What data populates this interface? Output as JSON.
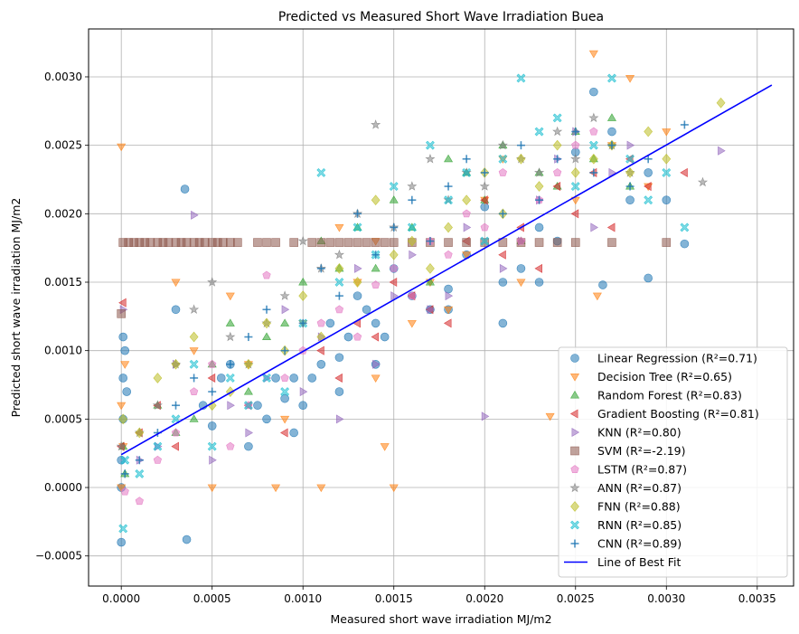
{
  "chart_data": {
    "type": "scatter",
    "title": "Predicted vs Measured Short Wave Irradiation Buea",
    "xlabel": "Measured short wave irradiation MJ/m2",
    "ylabel": "Predicted short wave irradiation MJ/m2",
    "xlim": [
      -0.00018,
      0.0037
    ],
    "ylim": [
      -0.00072,
      0.00335
    ],
    "x_ticks": [
      0.0,
      0.0005,
      0.001,
      0.0015,
      0.002,
      0.0025,
      0.003,
      0.0035
    ],
    "x_tick_labels": [
      "0.0000",
      "0.0005",
      "0.0010",
      "0.0015",
      "0.0020",
      "0.0025",
      "0.0030",
      "0.0035"
    ],
    "y_ticks": [
      -0.0005,
      0.0,
      0.0005,
      0.001,
      0.0015,
      0.002,
      0.0025,
      0.003
    ],
    "y_tick_labels": [
      "−0.0005",
      "0.0000",
      "0.0005",
      "0.0010",
      "0.0015",
      "0.0020",
      "0.0025",
      "0.0030"
    ],
    "grid": true,
    "legend_position": "lower-right",
    "series": [
      {
        "name": "Linear Regression (R²=0.71)",
        "color": "#1f77b4",
        "marker": "circle",
        "x": [
          0.0,
          1e-05,
          2e-05,
          1e-05,
          0.0,
          3e-05,
          1e-05,
          0.0,
          0.00035,
          0.00036,
          0.0003,
          0.00045,
          0.0005,
          0.00055,
          0.0006,
          0.0007,
          0.00075,
          0.0008,
          0.00085,
          0.0009,
          0.00095,
          0.001,
          0.00105,
          0.0011,
          0.00115,
          0.0012,
          0.00125,
          0.0013,
          0.00135,
          0.0014,
          0.00145,
          0.0015,
          0.0016,
          0.0017,
          0.0018,
          0.0019,
          0.002,
          0.0021,
          0.0022,
          0.0023,
          0.0024,
          0.0025,
          0.0026,
          0.0027,
          0.00265,
          0.0028,
          0.0029,
          0.003,
          0.0031,
          0.0029,
          0.00095,
          0.0012,
          0.0014,
          0.0018,
          0.0021,
          0.0023
        ],
        "y": [
          -0.0004,
          0.0011,
          0.001,
          0.0008,
          0.0002,
          0.0007,
          0.0005,
          0.0,
          0.00218,
          -0.00038,
          0.0013,
          0.0006,
          0.00045,
          0.0008,
          0.0009,
          0.0003,
          0.0006,
          0.0005,
          0.0008,
          0.00065,
          0.0004,
          0.0006,
          0.0008,
          0.0009,
          0.0012,
          0.00095,
          0.0011,
          0.0014,
          0.0013,
          0.0012,
          0.0011,
          0.0016,
          0.0014,
          0.0013,
          0.00145,
          0.0017,
          0.00205,
          0.0015,
          0.0016,
          0.0019,
          0.0018,
          0.00245,
          0.00289,
          0.0026,
          0.00148,
          0.0021,
          0.0023,
          0.0021,
          0.00178,
          0.00153,
          0.0008,
          0.0007,
          0.0009,
          0.0013,
          0.0012,
          0.0015
        ]
      },
      {
        "name": "Decision Tree (R²=0.65)",
        "color": "#ff7f0e",
        "marker": "triangle-down",
        "x": [
          0.0,
          0.0,
          1e-05,
          0.0,
          2e-05,
          0.0003,
          0.0004,
          0.0005,
          0.0006,
          0.0007,
          0.00085,
          0.0009,
          0.001,
          0.0011,
          0.0012,
          0.0013,
          0.0014,
          0.00145,
          0.0015,
          0.0016,
          0.0017,
          0.0018,
          0.0019,
          0.002,
          0.0021,
          0.0022,
          0.00236,
          0.0025,
          0.0026,
          0.0027,
          0.0028,
          0.0029,
          0.003,
          0.00262,
          0.0014
        ],
        "y": [
          0.00249,
          0.0,
          0.0003,
          0.0006,
          0.0009,
          0.0015,
          0.001,
          0.0,
          0.0014,
          0.0009,
          0.0,
          0.0005,
          0.0012,
          0.0,
          0.0019,
          0.0015,
          0.0018,
          0.0003,
          0.0,
          0.0012,
          0.0015,
          0.0013,
          0.0017,
          0.0021,
          0.0024,
          0.0015,
          0.00052,
          0.0021,
          0.00317,
          0.0025,
          0.00299,
          0.0022,
          0.0026,
          0.0014,
          0.0008
        ]
      },
      {
        "name": "Random Forest (R²=0.83)",
        "color": "#2ca02c",
        "marker": "triangle-up",
        "x": [
          1e-05,
          2e-05,
          0.0002,
          0.0003,
          0.0004,
          0.0005,
          0.0006,
          0.0007,
          0.0008,
          0.0009,
          0.001,
          0.0011,
          0.0012,
          0.0013,
          0.0014,
          0.0015,
          0.0016,
          0.0017,
          0.0018,
          0.0019,
          0.002,
          0.0021,
          0.0022,
          0.0023,
          0.0024,
          0.0025,
          0.0026,
          0.0027,
          0.0028
        ],
        "y": [
          0.0003,
          0.0001,
          0.0006,
          0.0004,
          0.0005,
          0.0009,
          0.0012,
          0.0007,
          0.0011,
          0.0012,
          0.0015,
          0.0018,
          0.0016,
          0.0019,
          0.0016,
          0.0021,
          0.0019,
          0.0015,
          0.0024,
          0.0023,
          0.0021,
          0.0025,
          0.0018,
          0.0023,
          0.0022,
          0.0026,
          0.0024,
          0.0027,
          0.0022
        ]
      },
      {
        "name": "Gradient Boosting (R²=0.81)",
        "color": "#d62728",
        "marker": "triangle-left",
        "x": [
          0.0,
          1e-05,
          0.0001,
          0.0002,
          0.0003,
          0.0005,
          0.0007,
          0.0009,
          0.0011,
          0.0012,
          0.0013,
          0.0014,
          0.0015,
          0.0016,
          0.0017,
          0.0018,
          0.0019,
          0.002,
          0.0021,
          0.0022,
          0.0023,
          0.0024,
          0.0025,
          0.0026,
          0.0027,
          0.0028,
          0.0029,
          0.0031
        ],
        "y": [
          0.0003,
          0.00135,
          0.0004,
          0.0006,
          0.0003,
          0.0008,
          0.0006,
          0.0004,
          0.001,
          0.0008,
          0.0012,
          0.0011,
          0.0015,
          0.0014,
          0.0013,
          0.0012,
          0.0018,
          0.0021,
          0.0017,
          0.0019,
          0.0016,
          0.0022,
          0.002,
          0.0023,
          0.0019,
          0.0024,
          0.0022,
          0.0023
        ]
      },
      {
        "name": "KNN (R²=0.80)",
        "color": "#9467bd",
        "marker": "triangle-right",
        "x": [
          1e-05,
          0.0001,
          0.0002,
          0.0003,
          0.0004,
          0.0005,
          0.0006,
          0.0007,
          0.0008,
          0.0009,
          0.001,
          0.0011,
          0.0012,
          0.0013,
          0.0014,
          0.0015,
          0.0016,
          0.0017,
          0.0018,
          0.0019,
          0.002,
          0.0021,
          0.0022,
          0.0023,
          0.0024,
          0.0025,
          0.0026,
          0.0027,
          0.0028,
          0.0033
        ],
        "y": [
          0.0013,
          0.0002,
          0.0003,
          0.0009,
          0.00199,
          0.0002,
          0.0006,
          0.0004,
          0.0008,
          0.0013,
          0.0007,
          0.0011,
          0.0005,
          0.0016,
          0.0009,
          0.0014,
          0.0017,
          0.0013,
          0.0014,
          0.0019,
          0.00052,
          0.0016,
          0.0018,
          0.0021,
          0.0024,
          0.0026,
          0.0019,
          0.0023,
          0.0025,
          0.00246
        ]
      },
      {
        "name": "SVM (R²=-2.19)",
        "color": "#8c564b",
        "marker": "square",
        "x": [
          1e-05,
          4e-05,
          7e-05,
          0.0001,
          0.00013,
          0.00016,
          0.0002,
          0.00023,
          0.00026,
          0.0003,
          0.00033,
          0.00036,
          0.0004,
          0.00043,
          0.00046,
          0.0005,
          0.00053,
          0.00056,
          0.0006,
          0.00064,
          0.00075,
          0.0008,
          0.00085,
          0.00095,
          0.00105,
          0.0011,
          0.00115,
          0.0012,
          0.00125,
          0.0013,
          0.00135,
          0.0014,
          0.00145,
          0.0015,
          0.0016,
          0.0017,
          0.0018,
          0.0019,
          0.002,
          0.0021,
          0.0022,
          0.0023,
          0.0024,
          0.0025,
          0.0027,
          0.003,
          0.0
        ],
        "y": [
          0.00179,
          0.00179,
          0.00179,
          0.00179,
          0.00179,
          0.00179,
          0.00179,
          0.00179,
          0.00179,
          0.00179,
          0.00179,
          0.00179,
          0.00179,
          0.00179,
          0.00179,
          0.00179,
          0.00179,
          0.00179,
          0.00179,
          0.00179,
          0.00179,
          0.00179,
          0.00179,
          0.00179,
          0.00179,
          0.00179,
          0.00179,
          0.00179,
          0.00179,
          0.00179,
          0.00179,
          0.00179,
          0.00179,
          0.00179,
          0.00179,
          0.00179,
          0.00179,
          0.00179,
          0.00179,
          0.00179,
          0.00179,
          0.00179,
          0.00179,
          0.00179,
          0.00179,
          0.00179,
          0.00127
        ]
      },
      {
        "name": "LSTM (R²=0.87)",
        "color": "#e377c2",
        "marker": "pentagon",
        "x": [
          2e-05,
          0.0001,
          0.0002,
          0.0003,
          0.0004,
          0.0005,
          0.0006,
          0.0007,
          0.0008,
          0.0009,
          0.001,
          0.0011,
          0.0012,
          0.0013,
          0.0014,
          0.0015,
          0.0016,
          0.0017,
          0.0018,
          0.0019,
          0.002,
          0.0021,
          0.0022,
          0.0023,
          0.0024,
          0.0025,
          0.0026
        ],
        "y": [
          -3e-05,
          -0.0001,
          0.0002,
          0.0004,
          0.0007,
          0.0009,
          0.0003,
          0.0006,
          0.00155,
          0.0008,
          0.001,
          0.0012,
          0.0013,
          0.0011,
          0.00148,
          0.0016,
          0.0014,
          0.0018,
          0.0017,
          0.002,
          0.0019,
          0.0023,
          0.0018,
          0.0021,
          0.0023,
          0.0025,
          0.0026
        ]
      },
      {
        "name": "ANN (R²=0.87)",
        "color": "#7f7f7f",
        "marker": "star",
        "x": [
          0.0,
          0.0001,
          0.0002,
          0.0003,
          0.0004,
          0.0005,
          0.0006,
          0.0007,
          0.0008,
          0.0009,
          0.001,
          0.0011,
          0.0012,
          0.0013,
          0.0014,
          0.0015,
          0.0016,
          0.0017,
          0.0018,
          0.0019,
          0.002,
          0.0021,
          0.0022,
          0.0023,
          0.0024,
          0.0025,
          0.0026,
          0.0027,
          0.0028,
          0.0032
        ],
        "y": [
          0.0003,
          0.0004,
          0.0006,
          0.0009,
          0.0013,
          0.0015,
          0.0011,
          0.0009,
          0.0012,
          0.0014,
          0.0018,
          0.0016,
          0.0017,
          0.002,
          0.00265,
          0.0019,
          0.0022,
          0.0024,
          0.0021,
          0.0023,
          0.0022,
          0.0025,
          0.0024,
          0.0023,
          0.0026,
          0.0024,
          0.0027,
          0.0025,
          0.0023,
          0.00223
        ]
      },
      {
        "name": "FNN (R²=0.88)",
        "color": "#bcbd22",
        "marker": "diamond",
        "x": [
          1e-05,
          0.0001,
          0.0002,
          0.0003,
          0.0004,
          0.0005,
          0.0006,
          0.0007,
          0.0008,
          0.0009,
          0.001,
          0.0011,
          0.0012,
          0.0013,
          0.0014,
          0.0015,
          0.0016,
          0.0017,
          0.0018,
          0.0019,
          0.002,
          0.0021,
          0.0022,
          0.0023,
          0.0024,
          0.0025,
          0.0026,
          0.0027,
          0.0028,
          0.0029,
          0.003,
          0.0033
        ],
        "y": [
          0.0005,
          0.0004,
          0.0008,
          0.0009,
          0.0011,
          0.0006,
          0.0007,
          0.0009,
          0.0012,
          0.001,
          0.0014,
          0.0011,
          0.0016,
          0.0015,
          0.0021,
          0.0017,
          0.0018,
          0.0016,
          0.0019,
          0.0021,
          0.0023,
          0.002,
          0.0024,
          0.0022,
          0.0025,
          0.0023,
          0.0024,
          0.0025,
          0.0023,
          0.0026,
          0.0024,
          0.00281
        ]
      },
      {
        "name": "RNN (R²=0.85)",
        "color": "#17becf",
        "marker": "x-cross",
        "x": [
          1e-05,
          2e-05,
          0.0001,
          0.0002,
          0.0003,
          0.0004,
          0.0005,
          0.0006,
          0.0007,
          0.0008,
          0.0009,
          0.001,
          0.0011,
          0.0012,
          0.0013,
          0.0014,
          0.0015,
          0.0016,
          0.0017,
          0.0018,
          0.0019,
          0.002,
          0.0021,
          0.0022,
          0.0023,
          0.0024,
          0.0025,
          0.0026,
          0.0027,
          0.0028,
          0.0029,
          0.003,
          0.0031
        ],
        "y": [
          -0.0003,
          0.0002,
          0.0001,
          0.0003,
          0.0005,
          0.0009,
          0.0003,
          0.0008,
          0.0006,
          0.0008,
          0.0007,
          0.0012,
          0.0023,
          0.0015,
          0.0019,
          0.0017,
          0.0022,
          0.0019,
          0.0025,
          0.0021,
          0.0023,
          0.0018,
          0.0024,
          0.00299,
          0.0026,
          0.0027,
          0.0022,
          0.0025,
          0.00299,
          0.0024,
          0.0021,
          0.0023,
          0.0019
        ]
      },
      {
        "name": "CNN (R²=0.89)",
        "color": "#1f77b4",
        "marker": "plus",
        "x": [
          2e-05,
          0.0001,
          0.0002,
          0.0003,
          0.0004,
          0.0005,
          0.0006,
          0.0007,
          0.0008,
          0.0009,
          0.001,
          0.0011,
          0.0012,
          0.0013,
          0.0014,
          0.0015,
          0.0016,
          0.0017,
          0.0018,
          0.0019,
          0.002,
          0.0021,
          0.0022,
          0.0023,
          0.0024,
          0.0025,
          0.0026,
          0.0027,
          0.0028,
          0.0029,
          0.0031
        ],
        "y": [
          0.0001,
          0.0002,
          0.0004,
          0.0006,
          0.0008,
          0.0007,
          0.0009,
          0.0011,
          0.0013,
          0.001,
          0.0012,
          0.0016,
          0.0014,
          0.002,
          0.0017,
          0.0019,
          0.0021,
          0.0018,
          0.0022,
          0.0024,
          0.0023,
          0.002,
          0.0025,
          0.0021,
          0.0024,
          0.0026,
          0.0023,
          0.0025,
          0.0022,
          0.0024,
          0.00265
        ]
      }
    ],
    "best_fit": {
      "name": "Line of Best Fit",
      "color": "#0000ff",
      "x": [
        0.0,
        0.00358
      ],
      "y": [
        0.00024,
        0.00294
      ]
    }
  }
}
